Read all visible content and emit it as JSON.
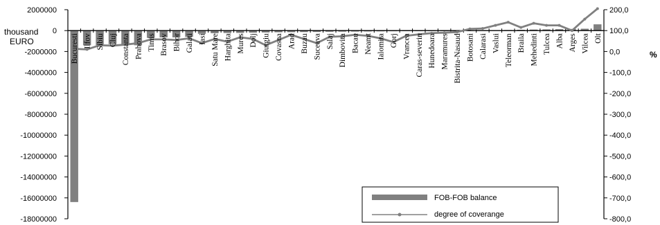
{
  "chart_data": {
    "type": "bar",
    "categories": [
      "Bucuresti",
      "Ilfov",
      "Sibiu",
      "Cluj",
      "Constanta",
      "Prahova",
      "Timis",
      "Brasov",
      "Bihor",
      "Galati",
      "Iasi",
      "Satu Mare",
      "Harghita",
      "Mures",
      "Dolj",
      "Giurgiu",
      "Covasna",
      "Arad",
      "Buzau",
      "Suceava",
      "Salaj",
      "Dimbovita",
      "Bacau",
      "Neamt",
      "Ialomita",
      "Gorj",
      "Vrancea",
      "Caras-severin",
      "Hunedoara",
      "Maramures",
      "Bistrita-Nasaud",
      "Botosani",
      "Calarasi",
      "Vaslui",
      "Teleorman",
      "Braila",
      "Mehedinti",
      "Tulcea",
      "Alba",
      "Arges",
      "Vilcea",
      "Olt"
    ],
    "series": [
      {
        "name": "FOB-FOB  balance",
        "axis": "left",
        "type": "bar",
        "color": "#808080",
        "values": [
          -16400000,
          -1400000,
          -1400000,
          -1300000,
          -1300000,
          -1400000,
          -700000,
          -650000,
          -650000,
          -600000,
          -300000,
          -250000,
          -230000,
          -220000,
          -200000,
          -180000,
          -160000,
          -150000,
          -140000,
          -130000,
          -110000,
          -100000,
          -90000,
          -80000,
          -70000,
          -60000,
          -50000,
          -40000,
          -30000,
          -20000,
          -10000,
          10000,
          20000,
          40000,
          60000,
          80000,
          100000,
          120000,
          140000,
          160000,
          180000,
          600000
        ]
      },
      {
        "name": "degree of coverange",
        "axis": "right",
        "type": "line",
        "color": "#808080",
        "values": [
          13,
          10,
          30,
          28,
          33,
          40,
          58,
          58,
          55,
          63,
          40,
          60,
          47,
          68,
          60,
          30,
          55,
          80,
          60,
          40,
          70,
          73,
          80,
          75,
          63,
          45,
          75,
          82,
          88,
          90,
          93,
          108,
          110,
          125,
          140,
          115,
          135,
          125,
          125,
          100,
          155,
          205
        ]
      }
    ],
    "left_axis": {
      "unit_label_line1": "thousand",
      "unit_label_line2": "EURO",
      "ylim": [
        -18000000,
        2000000
      ],
      "ticks": [
        "2000000",
        "0",
        "-2000000",
        "-4000000",
        "-6000000",
        "-8000000",
        "-10000000",
        "-12000000",
        "-14000000",
        "-16000000",
        "-18000000"
      ],
      "tick_values": [
        2000000,
        0,
        -2000000,
        -4000000,
        -6000000,
        -8000000,
        -10000000,
        -12000000,
        -14000000,
        -16000000,
        -18000000
      ]
    },
    "right_axis": {
      "unit_label": "%",
      "ylim": [
        -800,
        200
      ],
      "ticks": [
        "200,0",
        "100,0",
        "0,0",
        "-100,0",
        "-200,0",
        "-300,0",
        "-400,0",
        "-500,0",
        "-600,0",
        "-700,0",
        "-800,0"
      ],
      "tick_values": [
        200,
        100,
        0,
        -100,
        -200,
        -300,
        -400,
        -500,
        -600,
        -700,
        -800
      ]
    },
    "legend": {
      "placement": "bottom-right",
      "entries": [
        "FOB-FOB  balance",
        "degree of coverange"
      ]
    },
    "grid": false
  }
}
